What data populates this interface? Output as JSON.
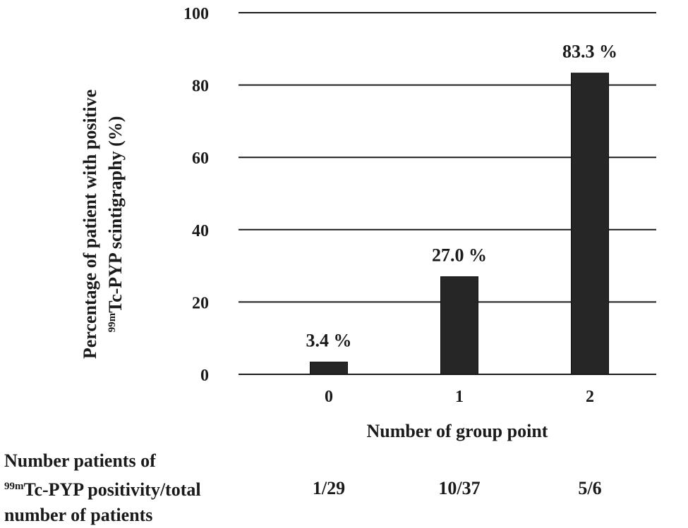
{
  "chart_data": {
    "type": "bar",
    "categories": [
      "0",
      "1",
      "2"
    ],
    "values": [
      3.4,
      27.0,
      83.3
    ],
    "data_labels": [
      "3.4 %",
      "27.0 %",
      "83.3 %"
    ],
    "ylim": [
      0,
      100
    ],
    "yticks": [
      "0",
      "20",
      "40",
      "60",
      "80",
      "100"
    ],
    "ytick_values": [
      0,
      20,
      40,
      60,
      80,
      100
    ],
    "grid": true,
    "bar_color": "#262626",
    "xlabel": "Number of group point",
    "ylabel_line1": "Percentage of patient with positive",
    "ylabel_line2_sup": "99m",
    "ylabel_line2": "Tc-PYP scintigraphy (%)"
  },
  "table": {
    "header_line1": "Number patients of",
    "header_line2_sup": "99m",
    "header_line2": "Tc-PYP positivity/total",
    "header_line3": "number of patients",
    "counts": [
      "1/29",
      "10/37",
      "5/6"
    ]
  }
}
